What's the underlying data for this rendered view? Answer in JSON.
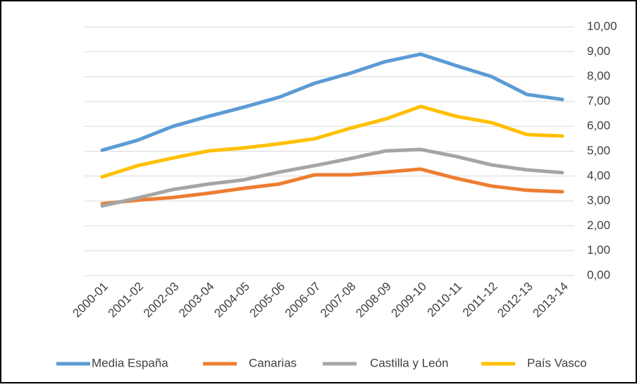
{
  "chart_data": {
    "type": "line",
    "categories": [
      "2000-01",
      "2001-02",
      "2002-03",
      "2003-04",
      "2004-05",
      "2005-06",
      "2006-07",
      "2007-08",
      "2008-09",
      "2009-10",
      "2010-11",
      "2011-12",
      "2012-13",
      "2013-14"
    ],
    "series": [
      {
        "name": "Media España",
        "color": "#5b9bd5",
        "values": [
          5.04,
          5.44,
          6.0,
          6.4,
          6.77,
          7.17,
          7.73,
          8.13,
          8.6,
          8.9,
          8.44,
          8.0,
          7.28,
          7.08
        ]
      },
      {
        "name": "Canarias",
        "color": "#ed7d31",
        "values": [
          2.89,
          3.03,
          3.14,
          3.31,
          3.51,
          3.68,
          4.05,
          4.05,
          4.16,
          4.28,
          3.91,
          3.6,
          3.43,
          3.37
        ]
      },
      {
        "name": "Castilla y León",
        "color": "#a5a5a5",
        "values": [
          2.8,
          3.12,
          3.46,
          3.68,
          3.85,
          4.16,
          4.42,
          4.7,
          5.01,
          5.07,
          4.79,
          4.45,
          4.25,
          4.14
        ]
      },
      {
        "name": "País Vasco",
        "color": "#ffc000",
        "values": [
          3.97,
          4.42,
          4.73,
          5.01,
          5.13,
          5.3,
          5.5,
          5.92,
          6.29,
          6.8,
          6.4,
          6.15,
          5.67,
          5.61
        ]
      }
    ],
    "ylim": [
      0,
      10
    ],
    "yticks": [
      {
        "value": 0,
        "label": "0,00"
      },
      {
        "value": 1,
        "label": "1,00"
      },
      {
        "value": 2,
        "label": "2,00"
      },
      {
        "value": 3,
        "label": "3,00"
      },
      {
        "value": 4,
        "label": "4,00"
      },
      {
        "value": 5,
        "label": "5,00"
      },
      {
        "value": 6,
        "label": "6,00"
      },
      {
        "value": 7,
        "label": "7,00"
      },
      {
        "value": 8,
        "label": "8,00"
      },
      {
        "value": 9,
        "label": "9,00"
      },
      {
        "value": 10,
        "label": "10,00"
      }
    ],
    "grid": true,
    "legend": "bottom"
  }
}
